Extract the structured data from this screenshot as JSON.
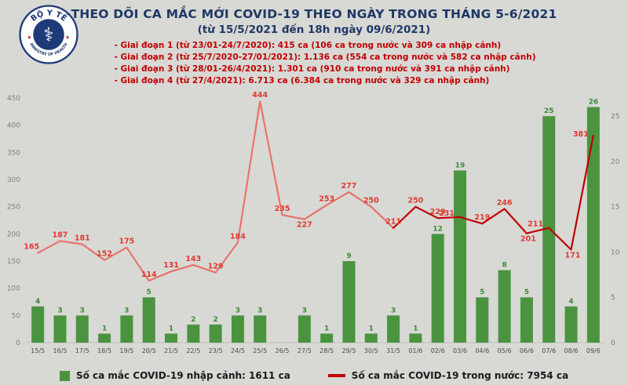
{
  "header": {
    "logo_top": "BỘ Y TẾ",
    "logo_bottom": "MINISTRY OF HEALTH",
    "title_line1": "THEO DÕI CA MẮC MỚI COVID-19 THEO NGÀY TRONG THÁNG 5-6/2021",
    "title_line2": "(từ 15/5/2021 đến 18h ngày 09/6/2021)"
  },
  "notes": [
    "- Giai đoạn 1 (từ 23/01-24/7/2020): 415 ca (106 ca trong nước và 309 ca nhập cảnh)",
    "- Giai đoạn 2 (từ 25/7/2020-27/01/2021): 1.136 ca (554 ca trong nước và 582 ca nhập cảnh)",
    "- Giai đoạn 3 (từ 28/01-26/4/2021): 1.301 ca (910 ca trong nước và 391 ca nhập cảnh)",
    "- Giai đoạn 4 (từ 27/4/2021): 6.713 ca (6.384 ca trong nước và 329 ca nhập cảnh)"
  ],
  "chart_data": {
    "type": "bar+line",
    "title": "THEO DÕI CA MẮC MỚI COVID-19 THEO NGÀY TRONG THÁNG 5-6/2021",
    "categories": [
      "15/5",
      "16/5",
      "17/5",
      "18/5",
      "19/5",
      "20/5",
      "21/5",
      "22/5",
      "23/5",
      "24/5",
      "25/5",
      "26/5",
      "27/5",
      "28/5",
      "29/5",
      "30/5",
      "31/5",
      "01/6",
      "02/6",
      "03/6",
      "04/6",
      "05/6",
      "06/6",
      "07/6",
      "08/6",
      "09/6"
    ],
    "series": [
      {
        "name": "Số ca mắc COVID-19 nhập cảnh",
        "type": "bar",
        "axis": "right",
        "color": "#4a9440",
        "values": [
          4,
          3,
          3,
          1,
          3,
          5,
          1,
          2,
          2,
          3,
          3,
          0,
          3,
          1,
          9,
          1,
          3,
          1,
          12,
          19,
          5,
          8,
          5,
          25,
          4,
          26
        ]
      },
      {
        "name": "Số ca mắc COVID-19 trong nước",
        "type": "line",
        "axis": "left",
        "color_segments": [
          {
            "from": 0,
            "to": 16,
            "color": "#e8736b"
          },
          {
            "from": 16,
            "to": 25,
            "color": "#c00000"
          }
        ],
        "values": [
          165,
          187,
          181,
          152,
          175,
          114,
          131,
          143,
          129,
          184,
          444,
          235,
          227,
          253,
          277,
          250,
          211,
          250,
          229,
          231,
          219,
          246,
          201,
          211,
          171,
          381
        ]
      }
    ],
    "left_axis": {
      "min": 0,
      "max": 450,
      "step": 50
    },
    "right_axis": {
      "min": 0,
      "max": 25,
      "step": 5,
      "plot_max": 27
    },
    "grid": false,
    "legend_position": "bottom",
    "legend": [
      {
        "label": "Số ca mắc COVID-19 nhập cảnh: 1611 ca",
        "color": "#4a9440",
        "marker": "square"
      },
      {
        "label": "Số ca mắc COVID-19 trong nước: 7954 ca",
        "color": "#c00000",
        "marker": "line"
      }
    ]
  }
}
